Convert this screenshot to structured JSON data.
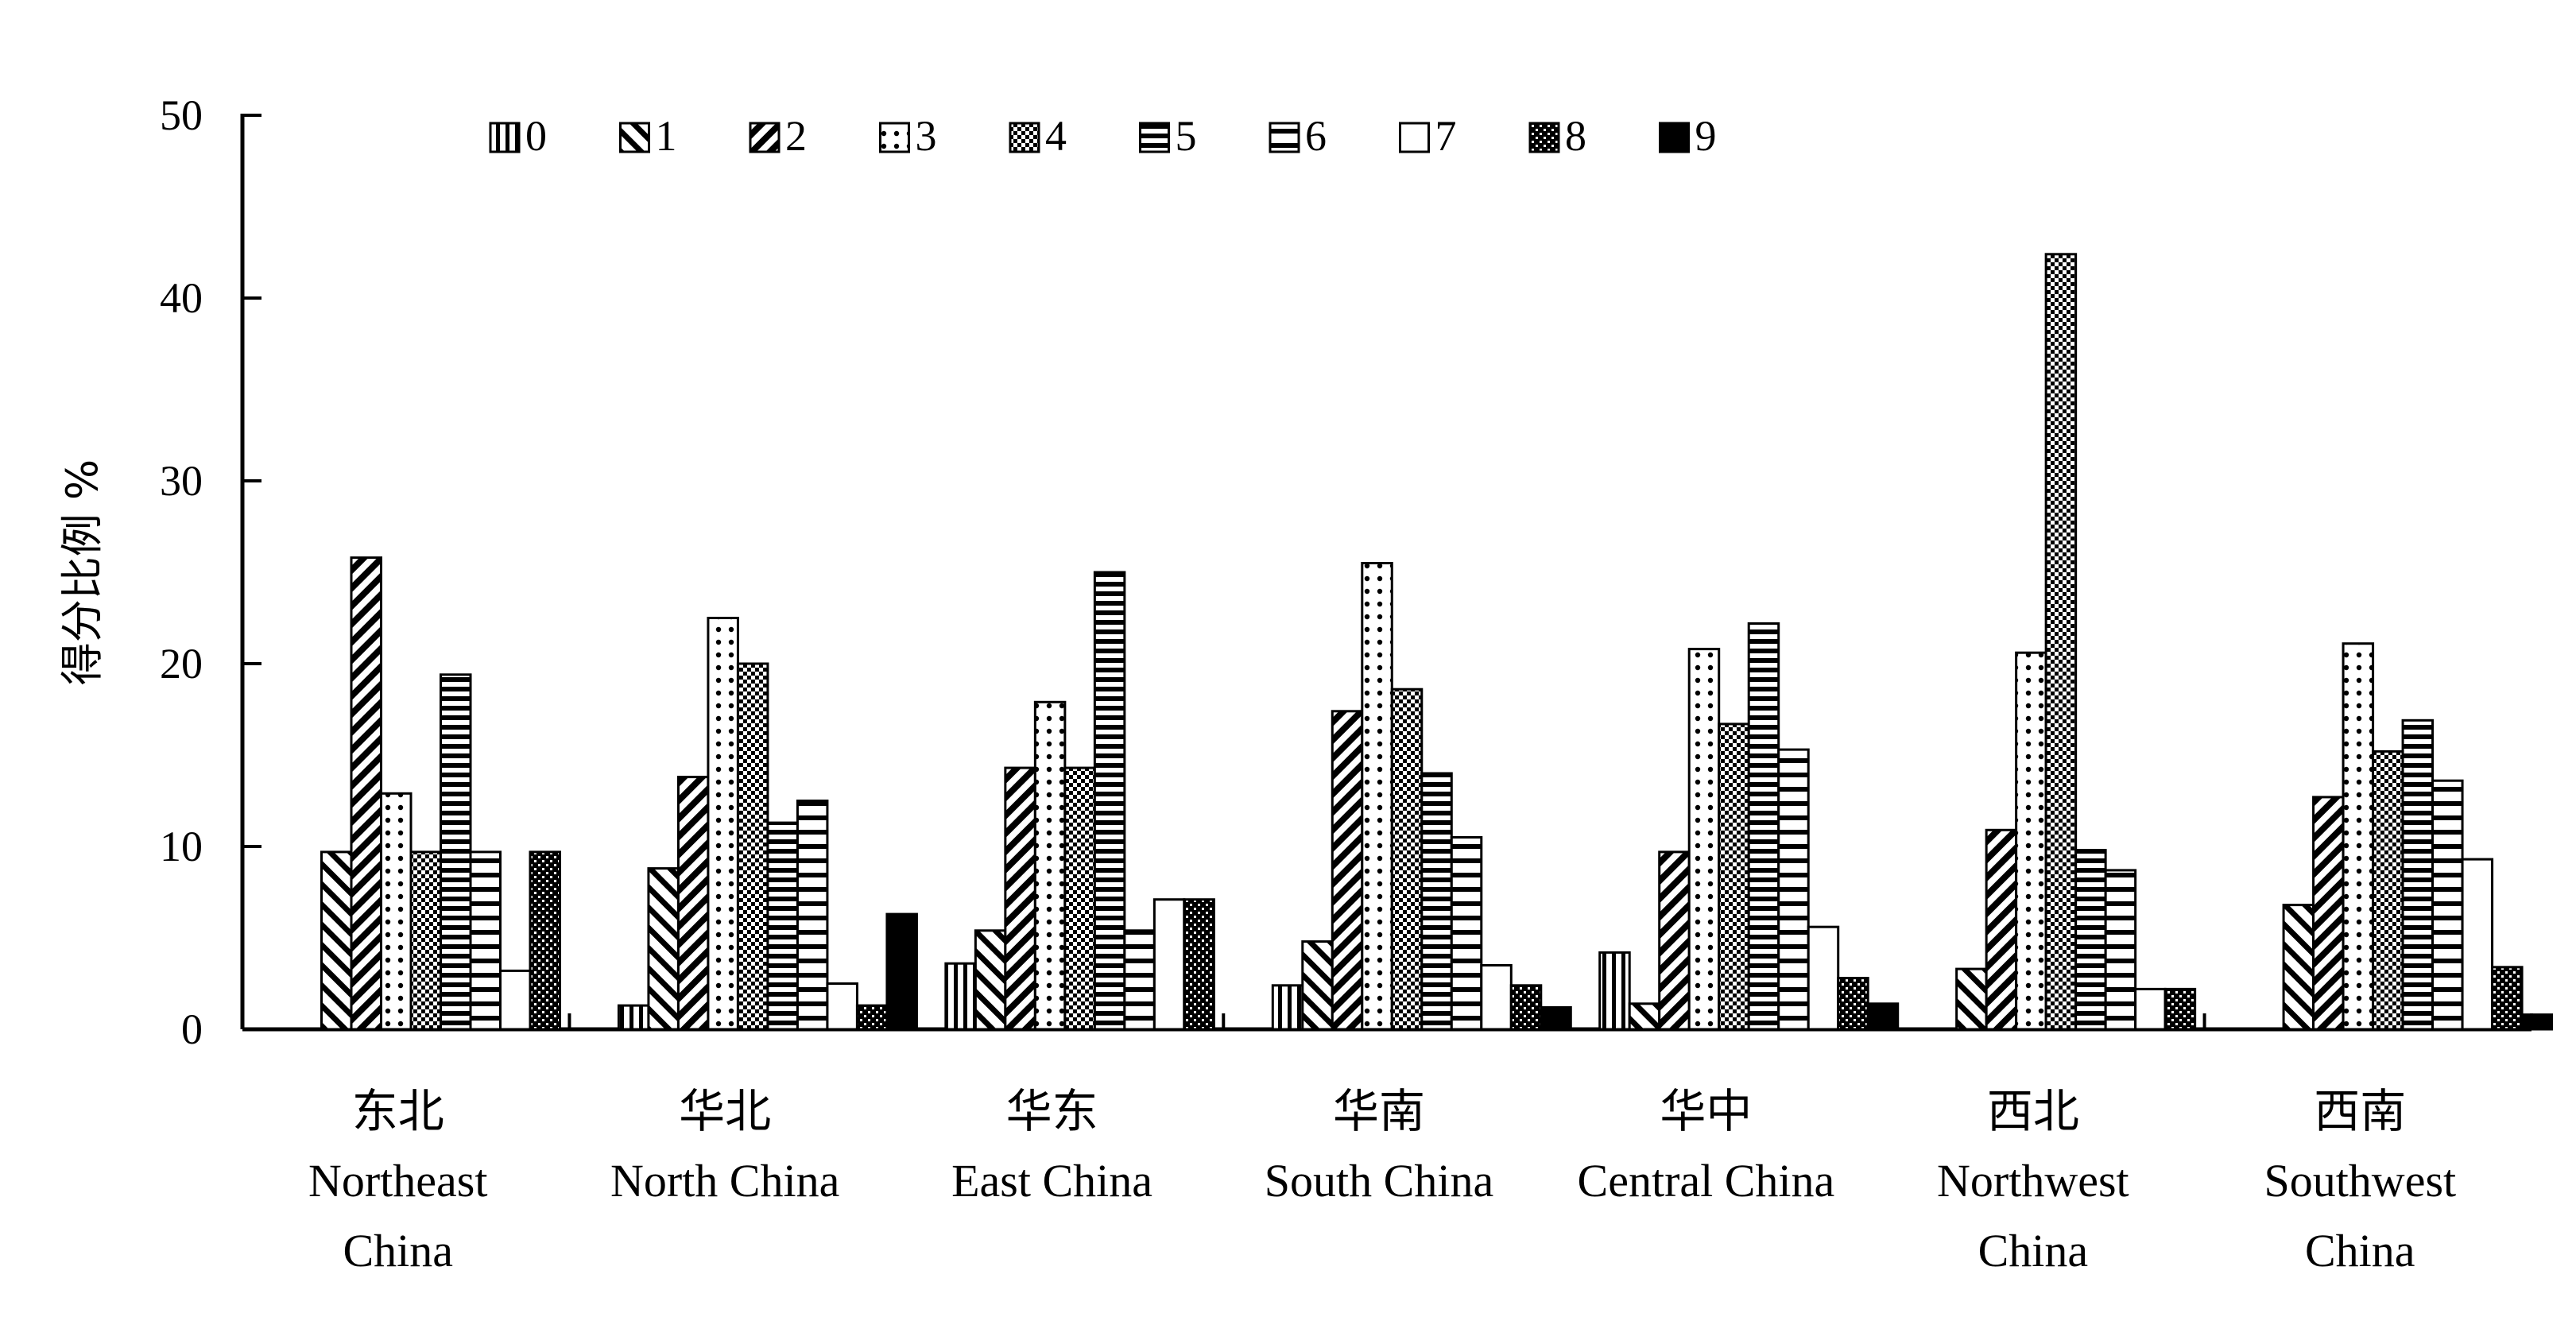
{
  "chart_data": {
    "type": "bar",
    "ylabel": "得分比例 %",
    "ylim": [
      0,
      50
    ],
    "yticks": [
      "0",
      "10",
      "20",
      "30",
      "40",
      "50"
    ],
    "legend_position": "top",
    "categories": [
      {
        "cn": "东北",
        "en": [
          "Northeast",
          "China"
        ]
      },
      {
        "cn": "华北",
        "en": [
          "North China"
        ]
      },
      {
        "cn": "华东",
        "en": [
          "East China"
        ]
      },
      {
        "cn": "华南",
        "en": [
          "South China"
        ]
      },
      {
        "cn": "华中",
        "en": [
          "Central China"
        ]
      },
      {
        "cn": "西北",
        "en": [
          "Northwest",
          "China"
        ]
      },
      {
        "cn": "西南",
        "en": [
          "Southwest",
          "China"
        ]
      }
    ],
    "series": [
      {
        "name": "0",
        "pattern": "vlines",
        "values": [
          0,
          1.3,
          3.6,
          2.4,
          4.2,
          0,
          0
        ]
      },
      {
        "name": "1",
        "pattern": "diag-back",
        "values": [
          9.7,
          8.8,
          5.4,
          4.8,
          1.4,
          3.3,
          6.8
        ]
      },
      {
        "name": "2",
        "pattern": "diag-fwd",
        "values": [
          25.8,
          13.8,
          14.3,
          17.4,
          9.7,
          10.9,
          12.7
        ]
      },
      {
        "name": "3",
        "pattern": "dots",
        "values": [
          12.9,
          22.5,
          17.9,
          25.5,
          20.8,
          20.6,
          21.1
        ]
      },
      {
        "name": "4",
        "pattern": "checker",
        "values": [
          9.7,
          20.0,
          14.3,
          18.6,
          16.7,
          42.4,
          15.2
        ]
      },
      {
        "name": "5",
        "pattern": "hlines-dense",
        "values": [
          19.4,
          11.3,
          25.0,
          14.0,
          22.2,
          9.8,
          16.9
        ]
      },
      {
        "name": "6",
        "pattern": "hlines-sparse",
        "values": [
          9.7,
          12.5,
          5.4,
          10.5,
          15.3,
          8.7,
          13.6
        ]
      },
      {
        "name": "7",
        "pattern": "white",
        "values": [
          3.2,
          2.5,
          7.1,
          3.5,
          5.6,
          2.2,
          9.3
        ]
      },
      {
        "name": "8",
        "pattern": "grid",
        "values": [
          9.7,
          1.3,
          7.1,
          2.4,
          2.8,
          2.2,
          3.4
        ]
      },
      {
        "name": "9",
        "pattern": "black",
        "values": [
          0,
          6.3,
          0,
          1.2,
          1.4,
          0,
          0.8
        ]
      }
    ]
  }
}
